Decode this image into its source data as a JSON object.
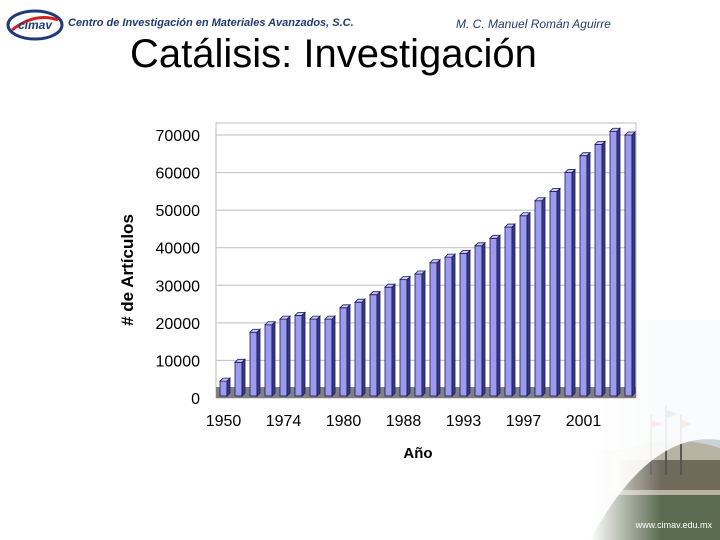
{
  "header": {
    "logo_text": "cimav",
    "organization": "Centro de Investigación en Materiales Avanzados, S.C.",
    "author": "M. C. Manuel Román Aguirre"
  },
  "slide": {
    "title": "Catálisis:  Investigación"
  },
  "footer": {
    "website": "www.cimav.edu.mx"
  },
  "colors": {
    "bar_front": "#9b9bf2",
    "bar_side": "#3a3a8a",
    "bar_top": "#c7c7fa",
    "floor": "#808080",
    "header_text": "#1f3a7a"
  },
  "chart_data": {
    "type": "bar",
    "xlabel": "Año",
    "ylabel": "# de Artículos",
    "ylim": [
      0,
      70000
    ],
    "yticks": [
      0,
      10000,
      20000,
      30000,
      40000,
      50000,
      60000,
      70000
    ],
    "ytick_labels": [
      "0",
      "10000",
      "20000",
      "30000",
      "40000",
      "50000",
      "60000",
      "70000"
    ],
    "xtick_labels": [
      {
        "label": "1950",
        "bar_index": 0
      },
      {
        "label": "1974",
        "bar_index": 4
      },
      {
        "label": "1980",
        "bar_index": 8
      },
      {
        "label": "1988",
        "bar_index": 12
      },
      {
        "label": "1993",
        "bar_index": 16
      },
      {
        "label": "1997",
        "bar_index": 20
      },
      {
        "label": "2001",
        "bar_index": 24
      }
    ],
    "grid": true,
    "values": [
      4500,
      9500,
      17500,
      19500,
      21000,
      22000,
      21000,
      21000,
      24000,
      25500,
      27500,
      29500,
      31500,
      33000,
      36000,
      37500,
      38500,
      40500,
      42500,
      45500,
      48500,
      52500,
      55000,
      60000,
      64500,
      67500,
      71000,
      70000
    ]
  }
}
